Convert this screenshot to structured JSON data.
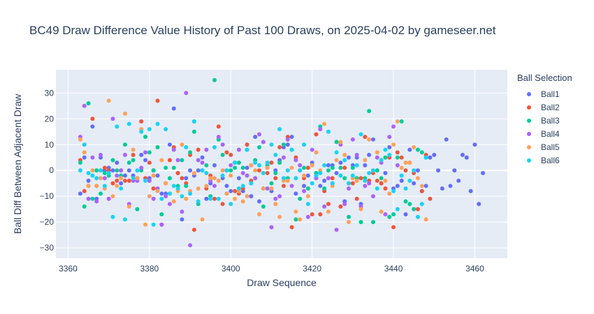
{
  "chart_data": {
    "type": "scatter",
    "title": "BC49 Draw Difference Value History of Past 100 Draws, on 2025-04-02 by gameseer.net",
    "xlabel": "Draw Sequence",
    "ylabel": "Ball Diff Between Adjacent Draw",
    "xlim": [
      3357,
      3468
    ],
    "ylim": [
      -34,
      39
    ],
    "xticks": [
      3360,
      3380,
      3400,
      3420,
      3440,
      3460
    ],
    "yticks": [
      -30,
      -20,
      -10,
      0,
      10,
      20,
      30
    ],
    "xtick_labels": [
      "3360",
      "3380",
      "3400",
      "3420",
      "3440",
      "3460"
    ],
    "ytick_labels": [
      "−30",
      "−20",
      "−10",
      "0",
      "10",
      "20",
      "30"
    ],
    "grid": true,
    "legend_title": "Ball Selection",
    "legend_position": "right",
    "x_start": 3363,
    "series": [
      {
        "name": "Ball1",
        "color": "#636efa",
        "values": [
          -9,
          5,
          -4,
          17,
          -11,
          5,
          0,
          1,
          0,
          3,
          -5,
          -2,
          0,
          -2,
          -3,
          6,
          4,
          -3,
          0,
          -2,
          -9,
          -9,
          10,
          24,
          -1,
          -19,
          -3,
          0,
          -2,
          0,
          5,
          -11,
          -5,
          2,
          12,
          -3,
          -6,
          -8,
          3,
          -3,
          -8,
          1,
          -10,
          13,
          -12,
          11,
          1,
          -8,
          0,
          4,
          9,
          10,
          13,
          -9,
          0,
          -6,
          -2,
          3,
          -1,
          -6,
          -4,
          2,
          2,
          -1,
          3,
          -12,
          5,
          2,
          5,
          -13,
          2,
          6,
          12,
          0,
          -5,
          -1,
          9,
          -7,
          -6,
          -4,
          -17,
          8,
          -5,
          0,
          -8,
          -6,
          5,
          6,
          0,
          -7,
          12,
          -6,
          0,
          -4,
          6,
          5,
          -8,
          10,
          -13,
          -1
        ]
      },
      {
        "name": "Ball2",
        "color": "#ef553b",
        "values": [
          4,
          -8,
          -6,
          20,
          -6,
          0,
          1,
          0,
          -5,
          -4,
          0,
          -4,
          -4,
          6,
          -3,
          19,
          -3,
          3,
          -7,
          27,
          -21,
          -5,
          4,
          9,
          -1,
          -3,
          -5,
          6,
          -23,
          8,
          0,
          -7,
          -2,
          -11,
          17,
          -13,
          7,
          6,
          -8,
          -9,
          -7,
          10,
          -4,
          -3,
          0,
          -7,
          -1,
          3,
          -3,
          9,
          -6,
          13,
          -22,
          5,
          0,
          -3,
          1,
          -17,
          14,
          -17,
          -8,
          -13,
          -3,
          11,
          -14,
          1,
          -5,
          -5,
          -11,
          -3,
          13,
          -4,
          -1,
          -4,
          -5,
          -7,
          5,
          -22,
          7,
          5,
          0,
          3,
          -1,
          -15,
          -8,
          6,
          -11
        ]
      },
      {
        "name": "Ball3",
        "color": "#00cc96",
        "values": [
          3,
          -14,
          26,
          -11,
          0,
          -9,
          -1,
          -2,
          4,
          0,
          -2,
          10,
          3,
          4,
          -15,
          0,
          13,
          7,
          0,
          9,
          -17,
          1,
          -3,
          1,
          -6,
          4,
          -6,
          7,
          15,
          -13,
          0,
          2,
          -10,
          35,
          12,
          6,
          -9,
          0,
          1,
          3,
          1,
          8,
          -5,
          4,
          9,
          -14,
          2,
          -5,
          -1,
          3,
          10,
          -3,
          8,
          -19,
          -11,
          1,
          -7,
          2,
          -1,
          17,
          -7,
          0,
          1,
          11,
          1,
          -3,
          -18,
          1,
          -3,
          -20,
          -3,
          23,
          -20,
          0,
          -3,
          5,
          -18,
          -17,
          5,
          19,
          -12,
          -13,
          -15,
          8,
          7,
          5
        ]
      },
      {
        "name": "Ball4",
        "color": "#ab63fa",
        "values": [
          13,
          25,
          -11,
          5,
          -12,
          6,
          -3,
          -11,
          20,
          -2,
          0,
          6,
          -13,
          -4,
          -4,
          1,
          7,
          -4,
          -11,
          -7,
          -21,
          -10,
          -13,
          8,
          4,
          -16,
          30,
          -29,
          19,
          4,
          3,
          8,
          -4,
          -6,
          13,
          10,
          0,
          2,
          3,
          8,
          -1,
          -2,
          2,
          -3,
          14,
          11,
          -7,
          -22,
          -11,
          -10,
          5,
          12,
          -6,
          4,
          2,
          -8,
          -18,
          8,
          -3,
          16,
          -14,
          -3,
          -5,
          -23,
          10,
          -13,
          -7,
          12,
          6,
          -14,
          -6,
          -5,
          -10,
          5,
          3,
          -17,
          13,
          17,
          2
        ]
      },
      {
        "name": "Ball5",
        "color": "#ffa15a",
        "values": [
          12,
          7,
          -6,
          0,
          -6,
          -3,
          -7,
          27,
          -10,
          -6,
          -3,
          22,
          -14,
          8,
          -3,
          16,
          -21,
          -10,
          -2,
          -8,
          4,
          -5,
          -9,
          -12,
          -8,
          10,
          -11,
          -8,
          -1,
          -7,
          -19,
          -6,
          -3,
          -3,
          -4,
          0,
          -9,
          -2,
          -11,
          -8,
          -12,
          -10,
          2,
          0,
          -17,
          -7,
          1,
          -7,
          -13,
          -18,
          -4,
          -4,
          1,
          -16,
          -19,
          -2,
          -10,
          2,
          7,
          0,
          18,
          -16,
          -6,
          4,
          11,
          6,
          -20,
          -3,
          -4,
          -15,
          4,
          12,
          0,
          7,
          -16,
          -4,
          -9,
          10,
          19,
          1,
          3,
          3,
          9,
          -3,
          -6,
          -19
        ]
      },
      {
        "name": "Ball6",
        "color": "#19d3f3",
        "values": [
          0,
          10,
          -1,
          -2,
          -3,
          0,
          -6,
          -1,
          -18,
          17,
          -7,
          -19,
          18,
          -3,
          0,
          15,
          -4,
          16,
          -21,
          18,
          -11,
          16,
          -9,
          -6,
          -7,
          -10,
          9,
          -9,
          19,
          -12,
          0,
          -1,
          -11,
          9,
          -11,
          -2,
          0,
          -13,
          3,
          -7,
          -6,
          8,
          -5,
          3,
          2,
          -1,
          3,
          10,
          6,
          16,
          -3,
          0,
          8,
          -3,
          0,
          10,
          -13,
          -5,
          -2,
          -1,
          2,
          15,
          -5,
          7,
          -2,
          4,
          -5,
          -2,
          2,
          14,
          -4,
          -1,
          0,
          -7,
          4,
          8,
          6,
          -8,
          -15,
          -2,
          -7,
          -4,
          0,
          -18,
          -13,
          5
        ]
      }
    ]
  }
}
